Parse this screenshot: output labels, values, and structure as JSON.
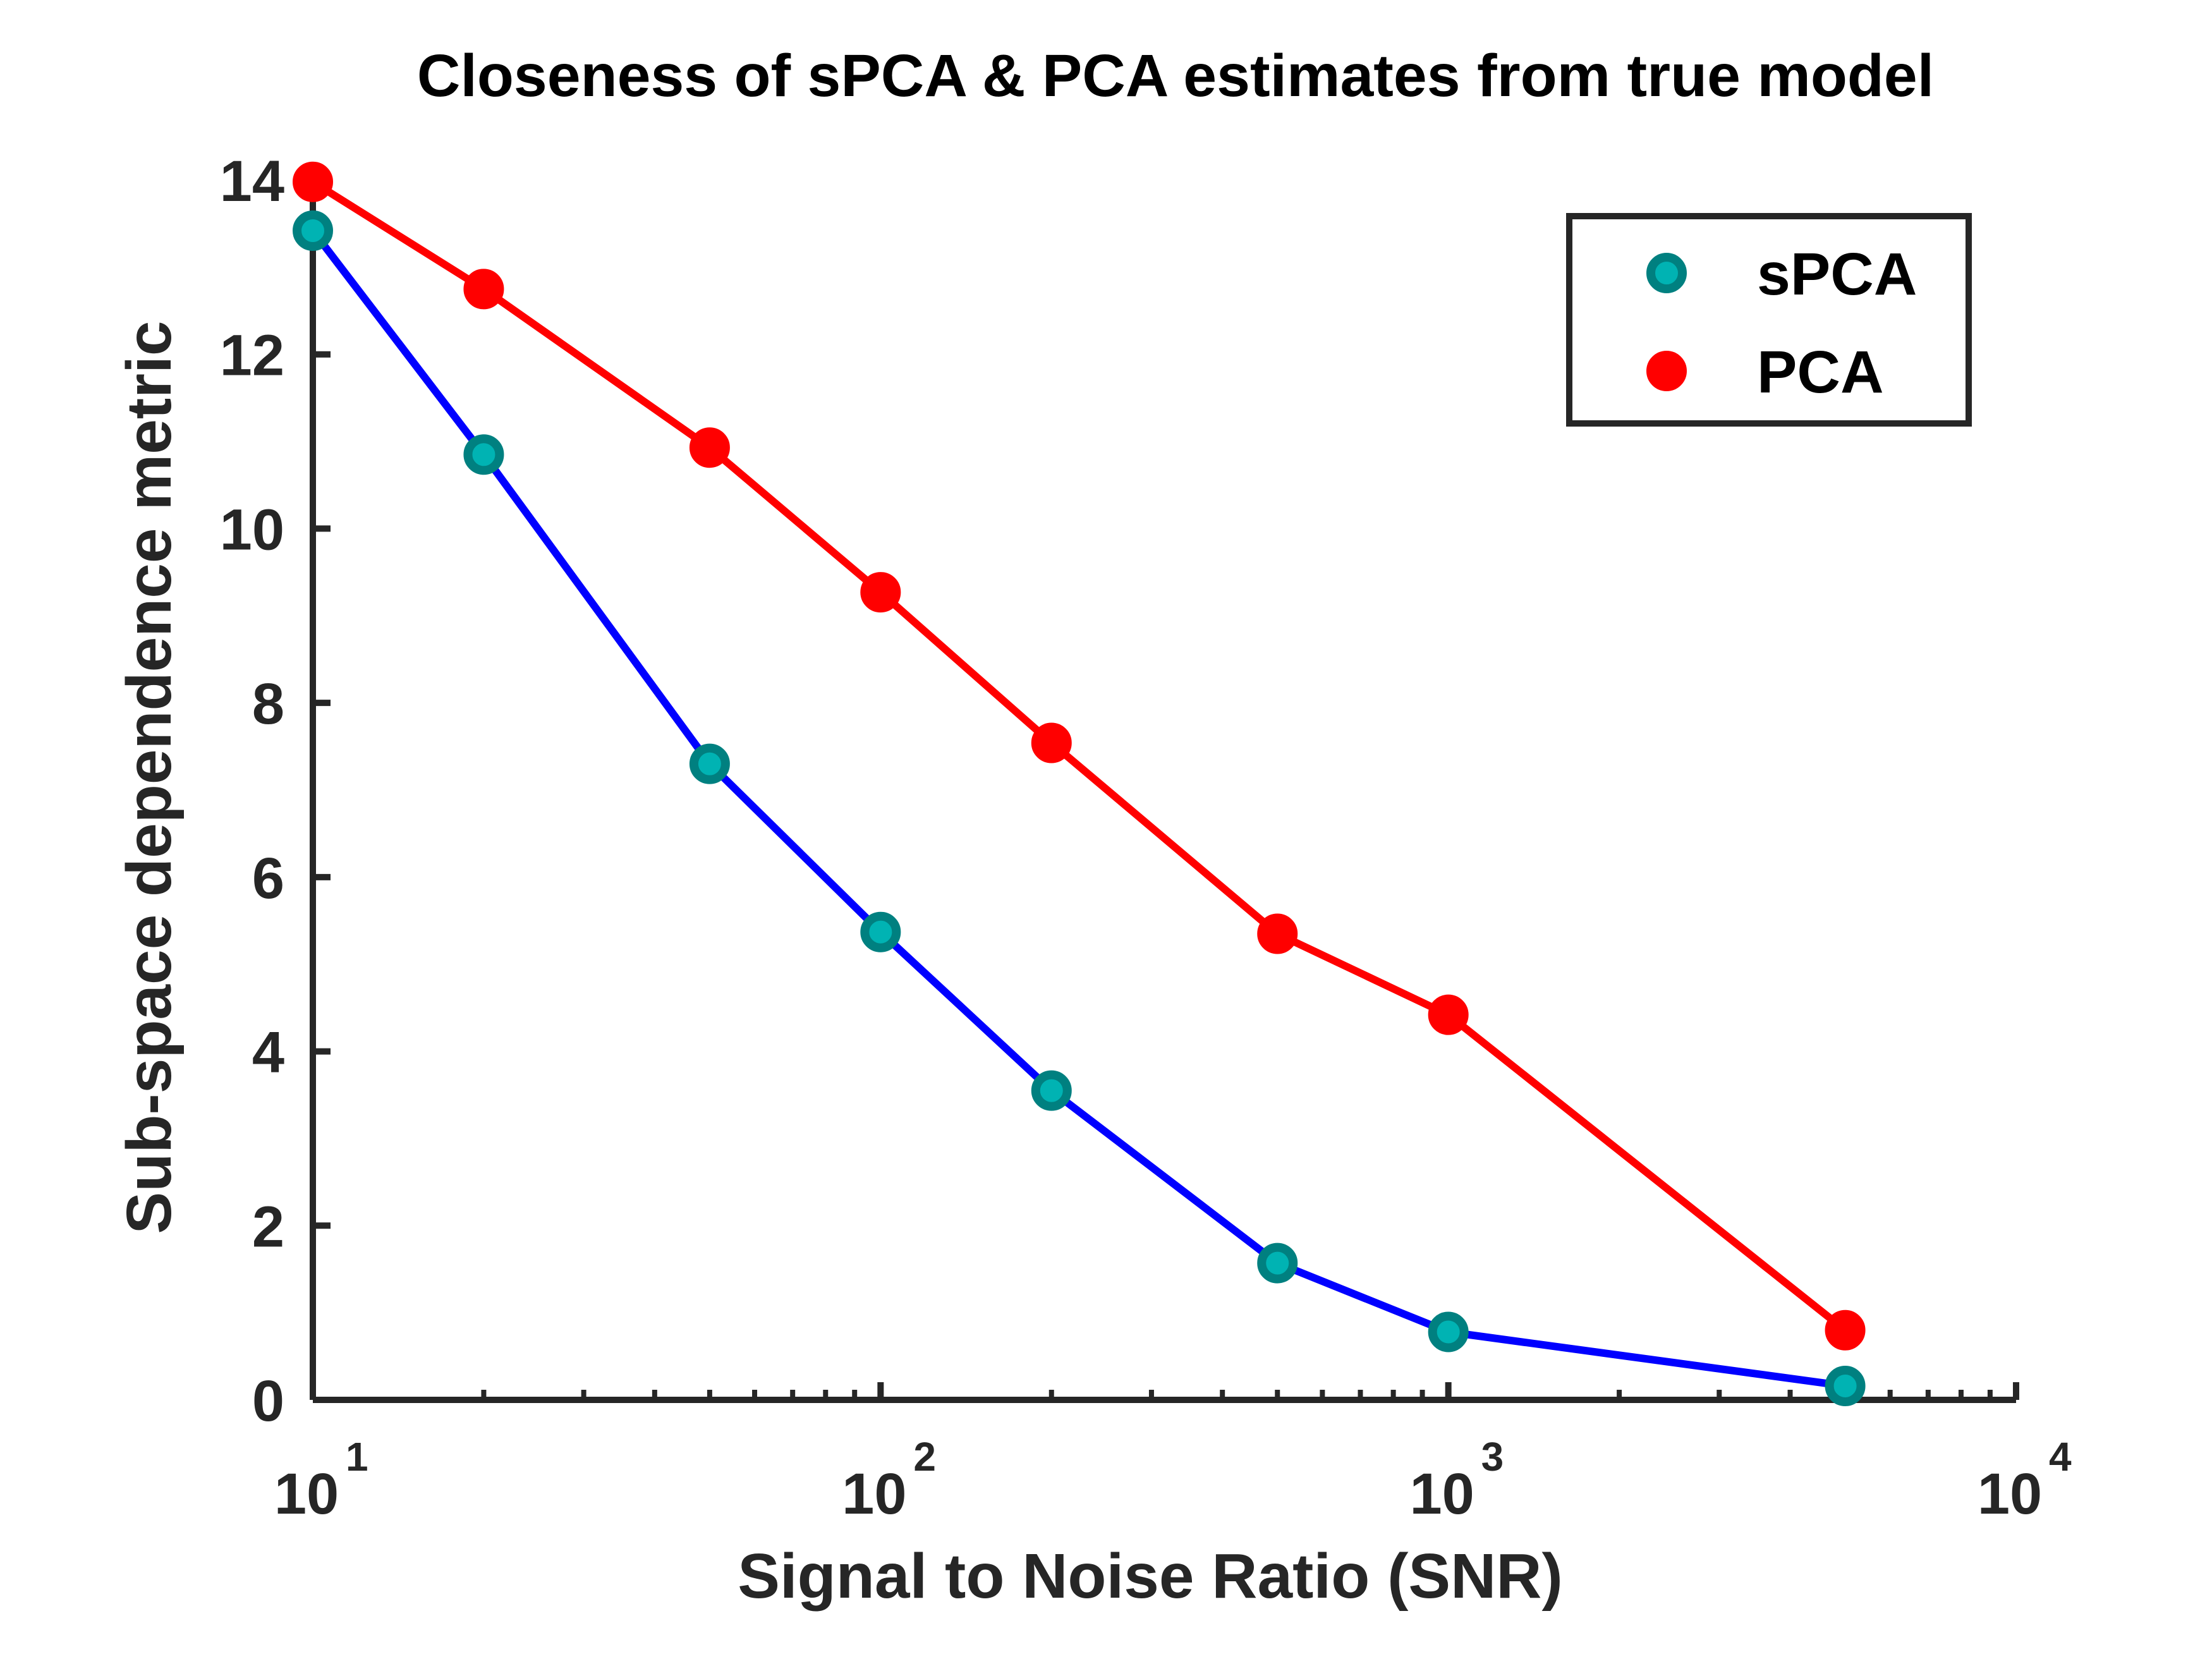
{
  "chart_data": {
    "type": "line",
    "title": "Closeness of sPCA & PCA estimates from true model",
    "xlabel": "Signal to Noise Ratio (SNR)",
    "ylabel": "Sub-space dependence metric",
    "xscale": "log",
    "xlim": [
      10,
      10000
    ],
    "ylim": [
      0,
      14
    ],
    "x": [
      10,
      20,
      50,
      100,
      200,
      500,
      1000,
      5000
    ],
    "yticks": [
      0,
      2,
      4,
      6,
      8,
      10,
      12,
      14
    ],
    "xticks": [
      {
        "base": "10",
        "exp": "1",
        "value": 10
      },
      {
        "base": "10",
        "exp": "2",
        "value": 100
      },
      {
        "base": "10",
        "exp": "3",
        "value": 1000
      },
      {
        "base": "10",
        "exp": "4",
        "value": 10000
      }
    ],
    "legend_position": "top-right",
    "series": [
      {
        "name": "sPCA",
        "values": [
          13.42,
          10.85,
          7.3,
          5.37,
          3.55,
          1.57,
          0.78,
          0.16
        ],
        "line_color": "#0000ff",
        "marker_edge": "#008080",
        "marker_fill": "#00b3b3"
      },
      {
        "name": "PCA",
        "values": [
          13.98,
          12.75,
          10.93,
          9.27,
          7.54,
          5.35,
          4.42,
          0.8
        ],
        "line_color": "#ff0000",
        "marker_edge": "#ff0000",
        "marker_fill": "#ff0000"
      }
    ]
  }
}
